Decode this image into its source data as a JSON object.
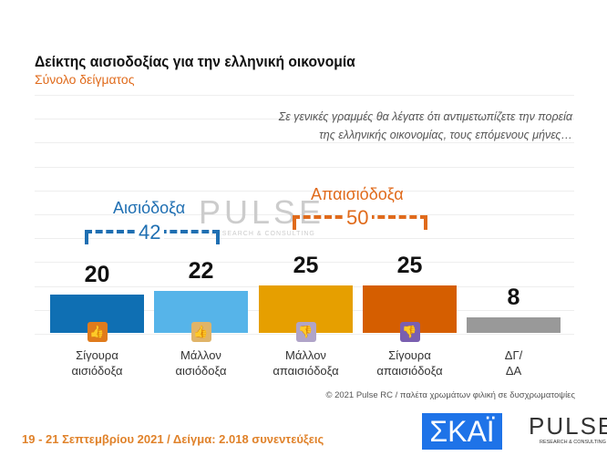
{
  "title": "Δείκτης αισιοδοξίας για την ελληνική οικονομία",
  "subtitle": "Σύνολο δείγματος",
  "question": [
    "Σε γενικές γραμμές θα λέγατε ότι αντιμετωπίζετε την πορεία",
    "της ελληνικής οικονομίας, τους επόμενους μήνες…"
  ],
  "groups": {
    "optimistic": {
      "label": "Αισιόδοξα",
      "total": "42",
      "color": "#1f6fb2"
    },
    "pessimistic": {
      "label": "Απαισιόδοξα",
      "total": "50",
      "color": "#e06b1c"
    }
  },
  "chart_data": {
    "type": "bar",
    "categories": [
      "Σίγουρα αισιόδοξα",
      "Μάλλον αισιόδοξα",
      "Μάλλον απαισιόδοξα",
      "Σίγουρα απαισιόδοξα",
      "ΔΓ/ ΔΑ"
    ],
    "category_lines": [
      [
        "Σίγουρα",
        "αισιόδοξα"
      ],
      [
        "Μάλλον",
        "αισιόδοξα"
      ],
      [
        "Μάλλον",
        "απαισιόδοξα"
      ],
      [
        "Σίγουρα",
        "απαισιόδοξα"
      ],
      [
        "ΔΓ/",
        "ΔΑ"
      ]
    ],
    "values": [
      20,
      22,
      25,
      25,
      8
    ],
    "colors": [
      "#0f6fb3",
      "#56b4e9",
      "#e69f00",
      "#d55e00",
      "#999999"
    ],
    "icons": [
      {
        "name": "double-thumbs-up-icon",
        "color": "#e07b1c"
      },
      {
        "name": "thumbs-up-icon",
        "color": "#e0b468"
      },
      {
        "name": "thumbs-down-icon",
        "color": "#b0a4c8"
      },
      {
        "name": "double-thumbs-down-icon",
        "color": "#7a5fb0"
      },
      null
    ],
    "ylim": [
      0,
      60
    ],
    "grid": true
  },
  "watermark": {
    "brand": "PULSE",
    "tagline": "RESEARCH & CONSULTING"
  },
  "copyright": "© 2021 Pulse RC  /  παλέτα χρωμάτων φιλική σε δυσχρωματοψίες",
  "footer": "19 - 21 Σεπτεμβρίου 2021  /  Δείγμα:  2.018 συνεντεύξεις",
  "logos": {
    "skai": "ΣΚΑΪ",
    "pulse": "PULSE",
    "pulse_tagline": "RESEARCH & CONSULTING"
  }
}
